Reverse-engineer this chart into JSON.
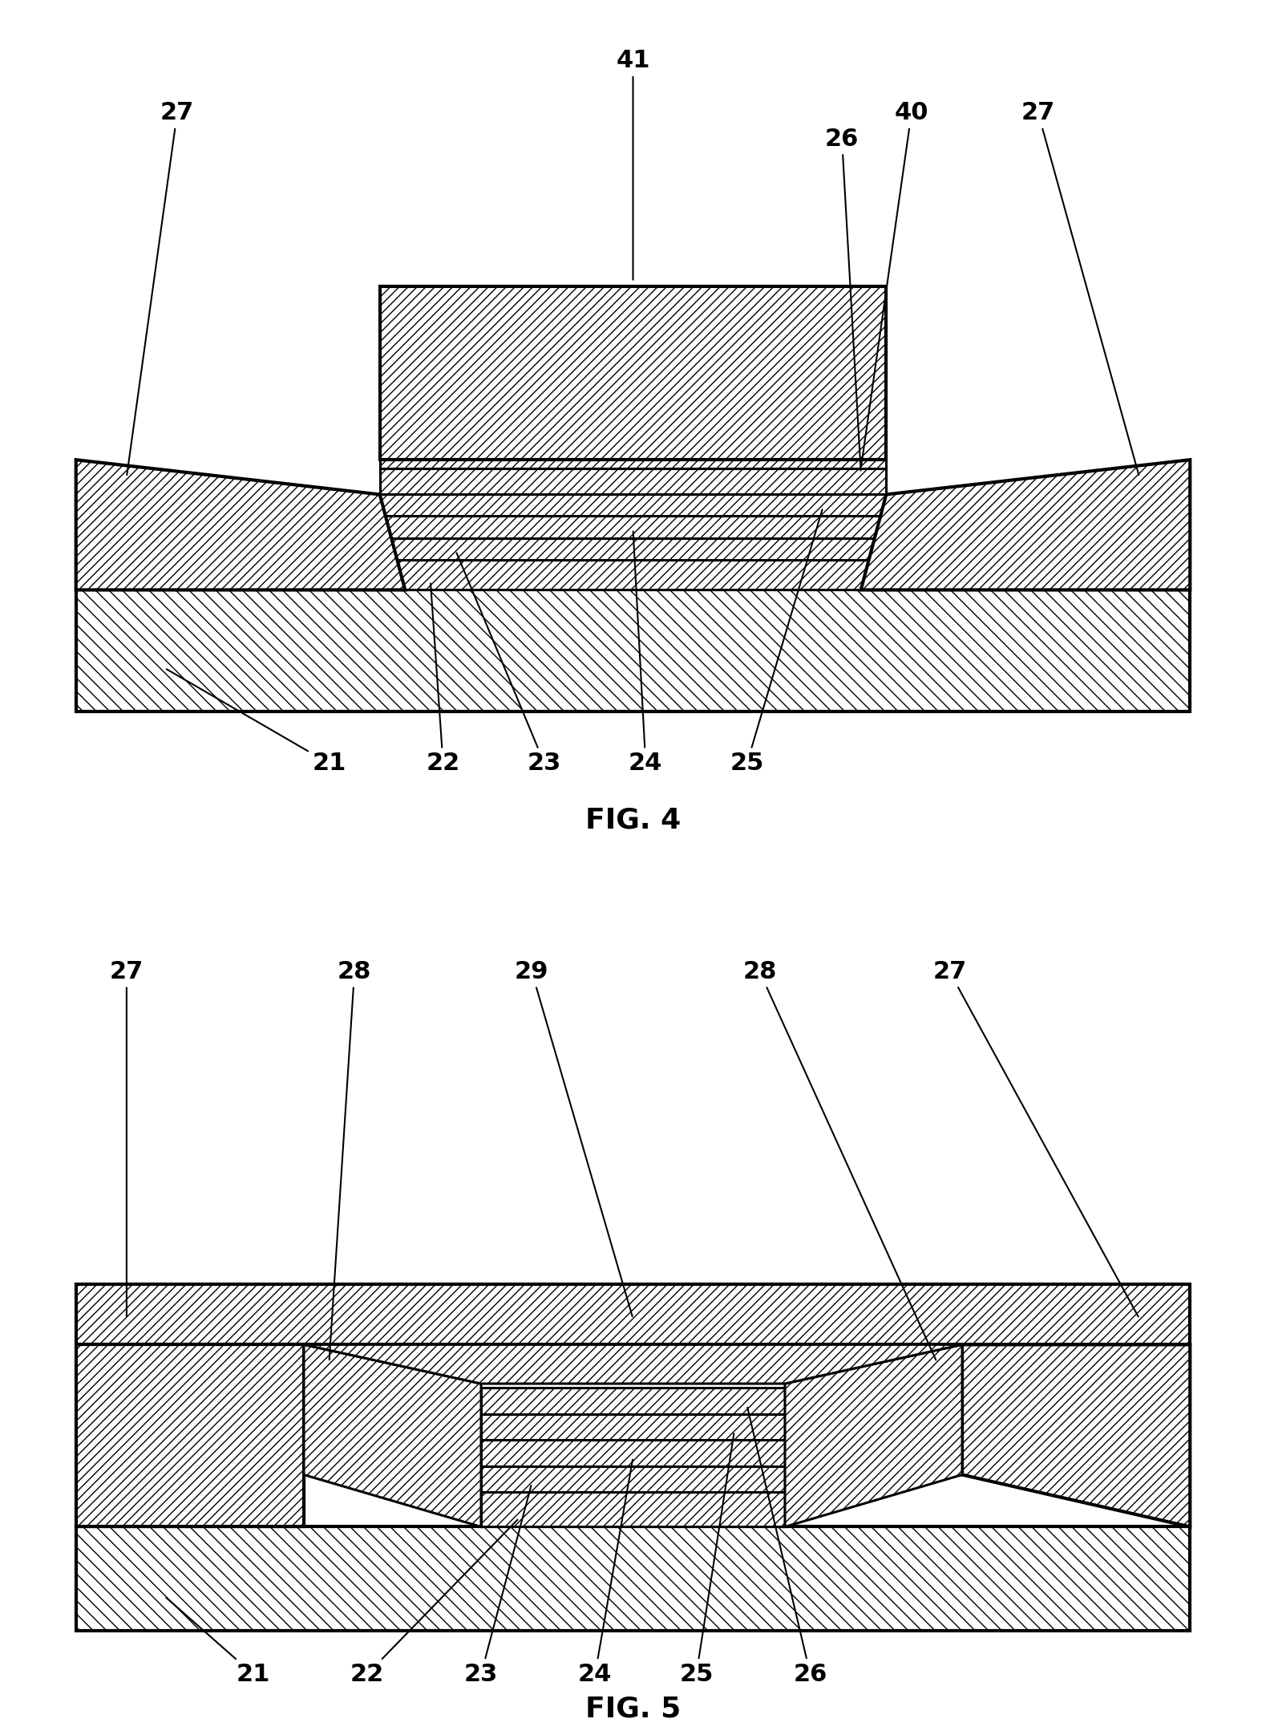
{
  "fig_width": 15.79,
  "fig_height": 21.63,
  "bg_color": "#ffffff",
  "fig4_title": "FIG. 4",
  "fig5_title": "FIG. 5",
  "font_size_label": 22,
  "font_size_title": 26,
  "lw": 2.2,
  "lw_thick": 3.0
}
